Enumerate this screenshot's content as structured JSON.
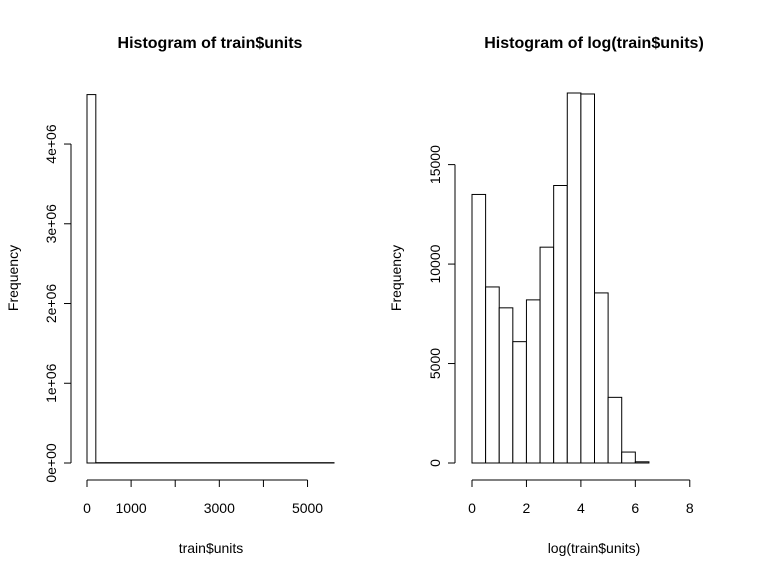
{
  "chart_data": [
    {
      "type": "bar",
      "title": "Histogram of train$units",
      "xlabel": "train$units",
      "ylabel": "Frequency",
      "xlim": [
        0,
        5600
      ],
      "ylim": [
        0,
        4640000
      ],
      "xticks": [
        0,
        1000,
        2000,
        3000,
        4000,
        5000
      ],
      "xtick_labels": [
        "0",
        "1000",
        "",
        "3000",
        "",
        "5000"
      ],
      "yticks": [
        0,
        1000000,
        2000000,
        3000000,
        4000000
      ],
      "ytick_labels": [
        "0e+00",
        "1e+06",
        "2e+06",
        "3e+06",
        "4e+06"
      ],
      "bins": [
        {
          "from": 0,
          "to": 200,
          "count": 4620000
        },
        {
          "from": 200,
          "to": 5600,
          "count": 4000
        }
      ]
    },
    {
      "type": "bar",
      "title": "Histogram of log(train$units)",
      "xlabel": "log(train$units)",
      "ylabel": "Frequency",
      "xlim": [
        0,
        9
      ],
      "ylim": [
        0,
        18600
      ],
      "xticks": [
        0,
        2,
        4,
        6,
        8
      ],
      "xtick_labels": [
        "0",
        "2",
        "4",
        "6",
        "8"
      ],
      "yticks": [
        0,
        5000,
        10000,
        15000
      ],
      "ytick_labels": [
        "0",
        "5000",
        "10000",
        "15000"
      ],
      "bins": [
        {
          "from": 0.0,
          "to": 0.5,
          "count": 13500
        },
        {
          "from": 0.5,
          "to": 1.0,
          "count": 8850
        },
        {
          "from": 1.0,
          "to": 1.5,
          "count": 7800
        },
        {
          "from": 1.5,
          "to": 2.0,
          "count": 6100
        },
        {
          "from": 2.0,
          "to": 2.5,
          "count": 8200
        },
        {
          "from": 2.5,
          "to": 3.0,
          "count": 10850
        },
        {
          "from": 3.0,
          "to": 3.5,
          "count": 13950
        },
        {
          "from": 3.5,
          "to": 4.0,
          "count": 18600
        },
        {
          "from": 4.0,
          "to": 4.5,
          "count": 18550
        },
        {
          "from": 4.5,
          "to": 5.0,
          "count": 8550
        },
        {
          "from": 5.0,
          "to": 5.5,
          "count": 3300
        },
        {
          "from": 5.5,
          "to": 6.0,
          "count": 550
        },
        {
          "from": 6.0,
          "to": 6.5,
          "count": 60
        },
        {
          "from": 6.5,
          "to": 9.0,
          "count": 0
        }
      ]
    }
  ]
}
